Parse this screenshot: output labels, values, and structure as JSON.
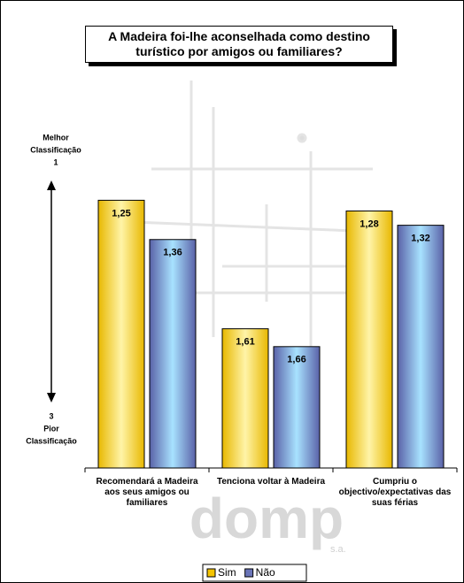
{
  "chart_data": {
    "type": "bar",
    "title": "A Madeira foi-lhe aconselhada como destino turístico por amigos ou familiares?",
    "categories": [
      "Recomendará a Madeira aos seus amigos ou familiares",
      "Tenciona voltar à Madeira",
      "Cumpriu o objectivo/expectativas das suas férias"
    ],
    "series": [
      {
        "name": "Sim",
        "color": "#f5c400",
        "values": [
          1.25,
          1.61,
          1.28
        ],
        "value_labels": [
          "1,25",
          "1,61",
          "1,28"
        ]
      },
      {
        "name": "Não",
        "color": "#6a75b8",
        "values": [
          1.36,
          1.66,
          1.32
        ],
        "value_labels": [
          "1,36",
          "1,66",
          "1,32"
        ]
      }
    ],
    "ylim": [
      1,
      2
    ],
    "y_inverted": true,
    "annotations": {
      "top": [
        "Melhor",
        "Classificação",
        "1"
      ],
      "bottom": [
        "3",
        "Pior",
        "Classificação"
      ]
    },
    "legend": "bottom"
  },
  "watermark": {
    "logo": "domp",
    "sub": "s.a."
  }
}
